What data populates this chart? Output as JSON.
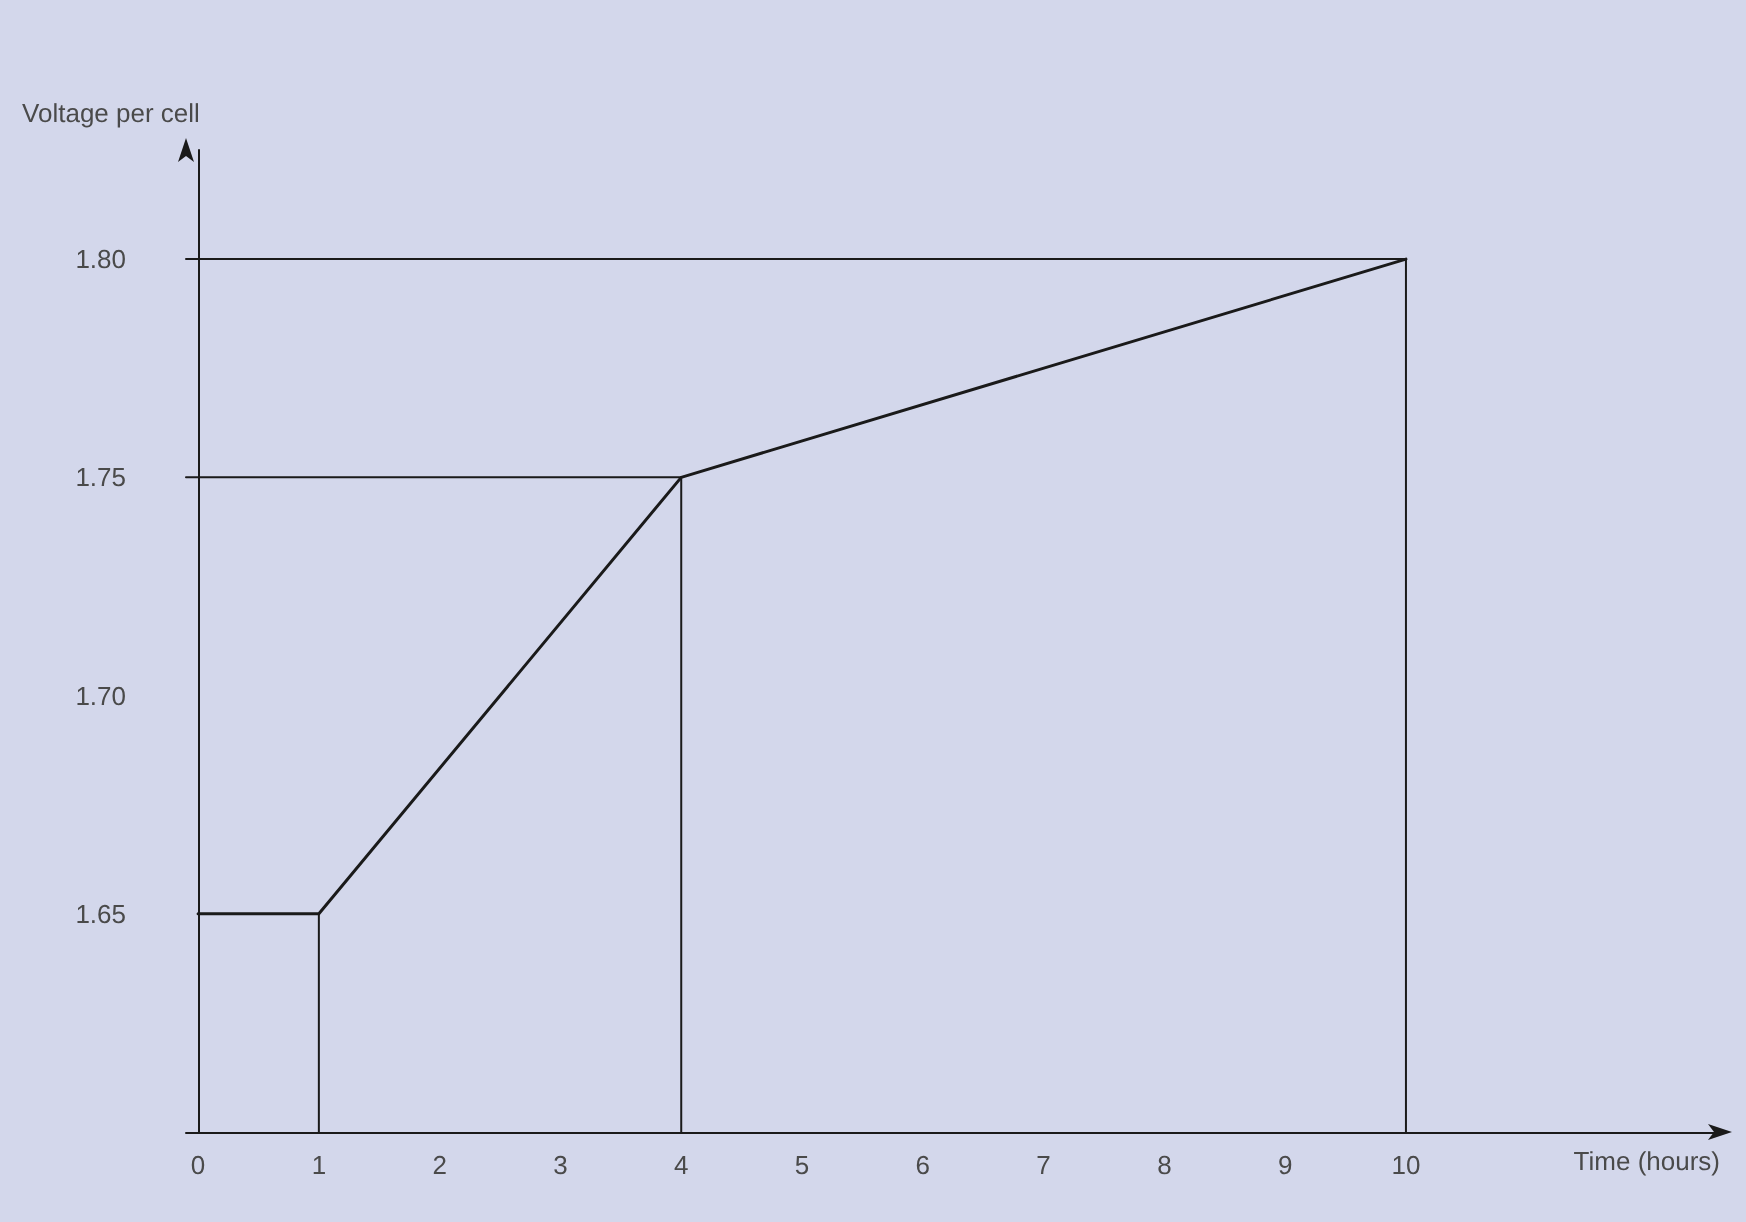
{
  "chart_data": {
    "type": "line",
    "xlabel": "Time (hours)",
    "ylabel": "Voltage per cell",
    "x": [
      0,
      1,
      4,
      10
    ],
    "series": [
      {
        "color": "#1a1a1a",
        "values": [
          1.65,
          1.65,
          1.75,
          1.8
        ]
      },
      {
        "color": "#1a1a1a",
        "x": [
          -0.1,
          4
        ],
        "values": [
          1.75,
          1.75
        ]
      },
      {
        "color": "#1a1a1a",
        "x": [
          -0.1,
          10
        ],
        "values": [
          1.8,
          1.8
        ]
      },
      {
        "color": "#1a1a1a",
        "x": [
          1,
          1
        ],
        "values": [
          1.6,
          1.65
        ]
      },
      {
        "color": "#1a1a1a",
        "x": [
          4,
          4
        ],
        "values": [
          1.6,
          1.75
        ]
      },
      {
        "color": "#1a1a1a",
        "x": [
          10,
          10
        ],
        "values": [
          1.6,
          1.8
        ]
      }
    ],
    "xlim": [
      -0.1,
      12.6
    ],
    "xticks": [
      0,
      1,
      2,
      3,
      4,
      5,
      6,
      7,
      8,
      9,
      10
    ],
    "ylim": [
      1.6,
      1.825
    ],
    "yticks": [
      {
        "value": 1.65,
        "label": "1.65"
      },
      {
        "value": 1.7,
        "label": "1.70"
      },
      {
        "value": 1.75,
        "label": "1.75"
      },
      {
        "value": 1.8,
        "label": "1.80"
      }
    ],
    "marker": "none",
    "line_style": "solid"
  }
}
